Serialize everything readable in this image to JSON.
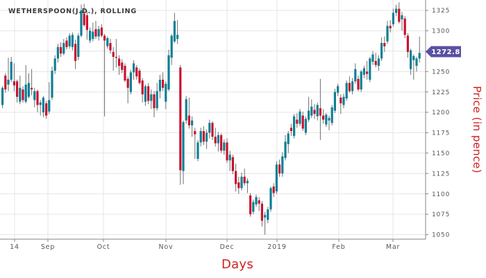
{
  "chart": {
    "title": "WETHERSPOON(J.D.), ROLLING",
    "title_color": "#3a3a3a"
  },
  "price_badge": {
    "value": "1272.8",
    "bg_color": "#5a50a2",
    "text_color": "#ffffff"
  },
  "axes": {
    "x_title": "Days",
    "y_title": "Price (in pence)",
    "axis_title_color": "#cc2222",
    "tick_label_color": "#555555",
    "axis_line_color": "#858585",
    "grid_color": "#e4e4e4"
  },
  "chart_data": {
    "type": "candlestick",
    "series_name": "WETHERSPOON(J.D.), ROLLING",
    "last_price": 1272.8,
    "up_color": "#0f7f95",
    "down_color": "#c9132e",
    "wick_color": "#6e6e6e",
    "x_axis": {
      "title": "Days",
      "ticks": [
        {
          "label": "14",
          "px": 21
        },
        {
          "label": "Sep",
          "px": 69
        },
        {
          "label": "Oct",
          "px": 149
        },
        {
          "label": "Nov",
          "px": 239
        },
        {
          "label": "Dec",
          "px": 327
        },
        {
          "label": "2019",
          "px": 399
        },
        {
          "label": "Feb",
          "px": 488
        },
        {
          "label": "Mar",
          "px": 566
        }
      ]
    },
    "y_axis": {
      "title": "Price (in pence)",
      "ticks": [
        1050,
        1075,
        1100,
        1125,
        1150,
        1175,
        1200,
        1225,
        1250,
        1275,
        1300,
        1325
      ],
      "range": [
        1045,
        1338
      ]
    },
    "candles_ohlc": [
      [
        1209,
        1232,
        1205,
        1230
      ],
      [
        1245,
        1248,
        1224,
        1228
      ],
      [
        1234,
        1267,
        1226,
        1240
      ],
      [
        1240,
        1268,
        1237,
        1262
      ],
      [
        1238,
        1260,
        1226,
        1233
      ],
      [
        1238,
        1240,
        1212,
        1219
      ],
      [
        1213,
        1245,
        1210,
        1230
      ],
      [
        1228,
        1232,
        1212,
        1215
      ],
      [
        1213,
        1258,
        1211,
        1234
      ],
      [
        1219,
        1248,
        1217,
        1236
      ],
      [
        1230,
        1253,
        1221,
        1228
      ],
      [
        1215,
        1230,
        1206,
        1226
      ],
      [
        1226,
        1228,
        1200,
        1209
      ],
      [
        1209,
        1215,
        1196,
        1212
      ],
      [
        1200,
        1220,
        1194,
        1218
      ],
      [
        1211,
        1214,
        1192,
        1196
      ],
      [
        1201,
        1237,
        1198,
        1215
      ],
      [
        1218,
        1256,
        1215,
        1251
      ],
      [
        1251,
        1270,
        1247,
        1266
      ],
      [
        1266,
        1284,
        1261,
        1280
      ],
      [
        1280,
        1286,
        1268,
        1272
      ],
      [
        1272,
        1290,
        1270,
        1285
      ],
      [
        1288,
        1292,
        1277,
        1280
      ],
      [
        1281,
        1297,
        1278,
        1294
      ],
      [
        1280,
        1298,
        1276,
        1295
      ],
      [
        1284,
        1289,
        1253,
        1263
      ],
      [
        1268,
        1297,
        1264,
        1294
      ],
      [
        1294,
        1332,
        1292,
        1325
      ],
      [
        1321,
        1333,
        1305,
        1307
      ],
      [
        1319,
        1324,
        1289,
        1301
      ],
      [
        1288,
        1304,
        1285,
        1300
      ],
      [
        1290,
        1310,
        1287,
        1299
      ],
      [
        1302,
        1312,
        1290,
        1293
      ],
      [
        1293,
        1306,
        1288,
        1302
      ],
      [
        1304,
        1308,
        1292,
        1294
      ],
      [
        1294,
        1296,
        1195,
        1288
      ],
      [
        1281,
        1293,
        1278,
        1291
      ],
      [
        1285,
        1290,
        1272,
        1276
      ],
      [
        1274,
        1280,
        1251,
        1268
      ],
      [
        1268,
        1290,
        1255,
        1267
      ],
      [
        1266,
        1270,
        1246,
        1257
      ],
      [
        1261,
        1265,
        1248,
        1252
      ],
      [
        1257,
        1260,
        1237,
        1239
      ],
      [
        1241,
        1244,
        1211,
        1230
      ],
      [
        1225,
        1252,
        1222,
        1249
      ],
      [
        1249,
        1264,
        1240,
        1260
      ],
      [
        1255,
        1258,
        1240,
        1244
      ],
      [
        1251,
        1254,
        1234,
        1236
      ],
      [
        1239,
        1242,
        1212,
        1222
      ],
      [
        1213,
        1234,
        1208,
        1232
      ],
      [
        1232,
        1236,
        1210,
        1214
      ],
      [
        1214,
        1228,
        1204,
        1222
      ],
      [
        1222,
        1226,
        1194,
        1205
      ],
      [
        1205,
        1236,
        1202,
        1226
      ],
      [
        1226,
        1246,
        1217,
        1240
      ],
      [
        1240,
        1249,
        1226,
        1230
      ],
      [
        1213,
        1238,
        1204,
        1235
      ],
      [
        1228,
        1277,
        1226,
        1270
      ],
      [
        1267,
        1296,
        1258,
        1294
      ],
      [
        1287,
        1322,
        1285,
        1312
      ],
      [
        1290,
        1313,
        1284,
        1295
      ],
      [
        1255,
        1258,
        1111,
        1129
      ],
      [
        1128,
        1190,
        1112,
        1188
      ],
      [
        1190,
        1220,
        1186,
        1216
      ],
      [
        1196,
        1218,
        1180,
        1184
      ],
      [
        1184,
        1195,
        1170,
        1190
      ],
      [
        1177,
        1181,
        1143,
        1173
      ],
      [
        1143,
        1166,
        1140,
        1163
      ],
      [
        1163,
        1181,
        1158,
        1177
      ],
      [
        1177,
        1183,
        1160,
        1164
      ],
      [
        1164,
        1179,
        1155,
        1175
      ],
      [
        1175,
        1191,
        1168,
        1187
      ],
      [
        1187,
        1189,
        1166,
        1170
      ],
      [
        1170,
        1181,
        1158,
        1162
      ],
      [
        1162,
        1176,
        1152,
        1172
      ],
      [
        1172,
        1174,
        1150,
        1153
      ],
      [
        1153,
        1167,
        1148,
        1163
      ],
      [
        1163,
        1168,
        1138,
        1141
      ],
      [
        1141,
        1153,
        1128,
        1148
      ],
      [
        1145,
        1148,
        1124,
        1128
      ],
      [
        1128,
        1137,
        1103,
        1112
      ],
      [
        1114,
        1121,
        1100,
        1107
      ],
      [
        1107,
        1126,
        1104,
        1121
      ],
      [
        1121,
        1131,
        1110,
        1113
      ],
      [
        1113,
        1119,
        1101,
        1116
      ],
      [
        1098,
        1101,
        1072,
        1075
      ],
      [
        1078,
        1093,
        1075,
        1090
      ],
      [
        1087,
        1099,
        1084,
        1096
      ],
      [
        1092,
        1096,
        1079,
        1088
      ],
      [
        1088,
        1091,
        1060,
        1067
      ],
      [
        1071,
        1078,
        1050,
        1074
      ],
      [
        1068,
        1084,
        1064,
        1081
      ],
      [
        1081,
        1109,
        1078,
        1107
      ],
      [
        1109,
        1113,
        1096,
        1101
      ],
      [
        1103,
        1140,
        1100,
        1136
      ],
      [
        1136,
        1142,
        1121,
        1125
      ],
      [
        1125,
        1151,
        1121,
        1146
      ],
      [
        1144,
        1172,
        1141,
        1164
      ],
      [
        1161,
        1177,
        1150,
        1174
      ],
      [
        1181,
        1186,
        1171,
        1177
      ],
      [
        1171,
        1198,
        1168,
        1195
      ],
      [
        1191,
        1199,
        1181,
        1186
      ],
      [
        1186,
        1204,
        1183,
        1201
      ],
      [
        1196,
        1201,
        1177,
        1180
      ],
      [
        1175,
        1195,
        1172,
        1192
      ],
      [
        1191,
        1219,
        1188,
        1202
      ],
      [
        1196,
        1216,
        1193,
        1207
      ],
      [
        1203,
        1210,
        1192,
        1198
      ],
      [
        1195,
        1212,
        1190,
        1209
      ],
      [
        1205,
        1241,
        1166,
        1196
      ],
      [
        1196,
        1204,
        1186,
        1191
      ],
      [
        1185,
        1199,
        1182,
        1197
      ],
      [
        1190,
        1196,
        1178,
        1193
      ],
      [
        1187,
        1209,
        1184,
        1206
      ],
      [
        1202,
        1229,
        1199,
        1225
      ],
      [
        1224,
        1235,
        1220,
        1232
      ],
      [
        1218,
        1222,
        1198,
        1211
      ],
      [
        1209,
        1223,
        1205,
        1219
      ],
      [
        1217,
        1239,
        1214,
        1236
      ],
      [
        1236,
        1244,
        1224,
        1226
      ],
      [
        1226,
        1242,
        1222,
        1238
      ],
      [
        1238,
        1260,
        1235,
        1253
      ],
      [
        1241,
        1245,
        1226,
        1228
      ],
      [
        1228,
        1252,
        1225,
        1250
      ],
      [
        1246,
        1257,
        1242,
        1254
      ],
      [
        1250,
        1263,
        1240,
        1247
      ],
      [
        1240,
        1268,
        1237,
        1266
      ],
      [
        1262,
        1275,
        1258,
        1271
      ],
      [
        1263,
        1273,
        1255,
        1258
      ],
      [
        1257,
        1270,
        1251,
        1266
      ],
      [
        1266,
        1292,
        1263,
        1285
      ],
      [
        1285,
        1293,
        1274,
        1281
      ],
      [
        1287,
        1312,
        1284,
        1306
      ],
      [
        1306,
        1313,
        1298,
        1303
      ],
      [
        1308,
        1327,
        1305,
        1322
      ],
      [
        1322,
        1332,
        1318,
        1327
      ],
      [
        1327,
        1335,
        1309,
        1311
      ],
      [
        1314,
        1323,
        1300,
        1319
      ],
      [
        1315,
        1318,
        1291,
        1295
      ],
      [
        1294,
        1297,
        1267,
        1274
      ],
      [
        1253,
        1278,
        1246,
        1276
      ],
      [
        1264,
        1271,
        1240,
        1269
      ],
      [
        1257,
        1268,
        1250,
        1266
      ],
      [
        1266,
        1293,
        1261,
        1272.8
      ]
    ]
  }
}
